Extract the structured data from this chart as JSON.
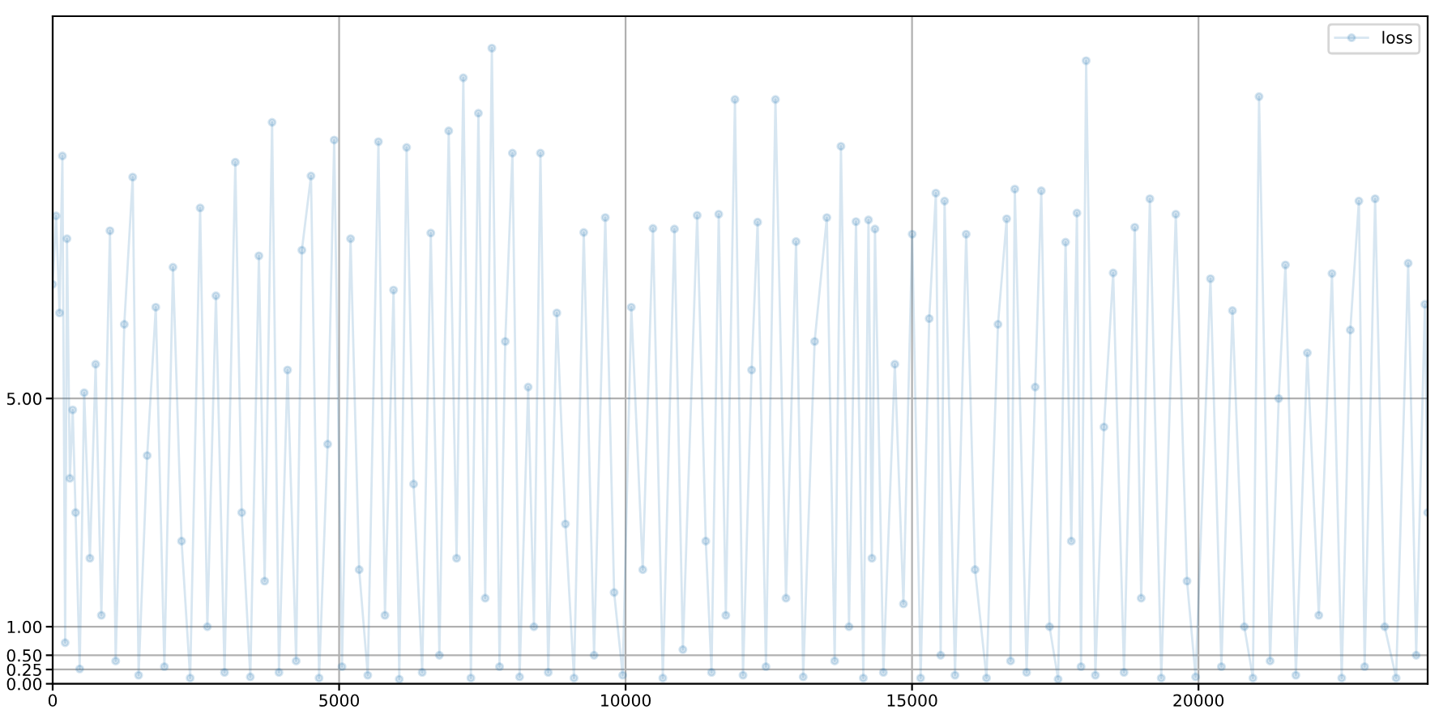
{
  "chart_data": {
    "type": "line",
    "x": [
      0,
      60,
      120,
      170,
      218,
      250,
      300,
      350,
      400,
      472,
      550,
      650,
      750,
      850,
      1000,
      1100,
      1250,
      1397,
      1500,
      1650,
      1800,
      1950,
      2100,
      2250,
      2400,
      2574,
      2700,
      2850,
      3000,
      3188,
      3300,
      3450,
      3600,
      3700,
      3830,
      3950,
      4100,
      4250,
      4350,
      4509,
      4650,
      4800,
      4914,
      5050,
      5200,
      5350,
      5500,
      5686,
      5800,
      5950,
      6050,
      6178,
      6300,
      6450,
      6600,
      6750,
      6913,
      7050,
      7168,
      7300,
      7431,
      7550,
      7666,
      7800,
      7900,
      8025,
      8150,
      8300,
      8400,
      8514,
      8650,
      8800,
      8950,
      9100,
      9270,
      9450,
      9646,
      9800,
      9950,
      10100,
      10300,
      10478,
      10650,
      10853,
      11000,
      11250,
      11400,
      11500,
      11626,
      11750,
      11909,
      12050,
      12200,
      12305,
      12450,
      12616,
      12800,
      12976,
      13100,
      13300,
      13513,
      13650,
      13759,
      13900,
      14022,
      14150,
      14240,
      14300,
      14353,
      14500,
      14700,
      14850,
      15003,
      15150,
      15300,
      15416,
      15500,
      15568,
      15750,
      15945,
      16100,
      16300,
      16500,
      16652,
      16720,
      16794,
      17000,
      17150,
      17256,
      17400,
      17550,
      17680,
      17780,
      17878,
      17950,
      18039,
      18200,
      18350,
      18511,
      18700,
      18888,
      19000,
      19151,
      19350,
      19604,
      19800,
      19950,
      20209,
      20400,
      20593,
      20800,
      20950,
      21057,
      21250,
      21400,
      21518,
      21700,
      21900,
      22100,
      22330,
      22500,
      22650,
      22800,
      22900,
      23083,
      23250,
      23450,
      23660,
      23800,
      23952,
      24000
    ],
    "series": [
      {
        "name": "loss",
        "color": "#1f77b4",
        "values": [
          7.0,
          8.2,
          6.5,
          9.25,
          0.72,
          7.8,
          3.6,
          4.8,
          3.0,
          0.26,
          5.1,
          2.2,
          5.6,
          1.2,
          7.94,
          0.4,
          6.3,
          8.88,
          0.15,
          4.0,
          6.6,
          0.3,
          7.3,
          2.5,
          0.1,
          8.34,
          1.0,
          6.8,
          0.2,
          9.14,
          3.0,
          0.12,
          7.5,
          1.8,
          9.84,
          0.2,
          5.5,
          0.4,
          7.6,
          8.9,
          0.1,
          4.2,
          9.53,
          0.3,
          7.8,
          2.0,
          0.15,
          9.5,
          1.2,
          6.9,
          0.08,
          9.4,
          3.5,
          0.2,
          7.9,
          0.5,
          9.69,
          2.2,
          10.62,
          0.1,
          10.0,
          1.5,
          11.14,
          0.3,
          6.0,
          9.3,
          0.12,
          5.2,
          1.0,
          9.3,
          0.2,
          6.5,
          2.8,
          0.1,
          7.91,
          0.5,
          8.17,
          1.6,
          0.15,
          6.6,
          2.0,
          7.98,
          0.1,
          7.97,
          0.6,
          8.21,
          2.5,
          0.2,
          8.23,
          1.2,
          10.24,
          0.15,
          5.5,
          8.09,
          0.3,
          10.24,
          1.5,
          7.75,
          0.12,
          6.0,
          8.17,
          0.4,
          9.42,
          1.0,
          8.1,
          0.1,
          8.13,
          2.2,
          7.97,
          0.2,
          5.6,
          1.4,
          7.88,
          0.1,
          6.4,
          8.6,
          0.5,
          8.46,
          0.15,
          7.88,
          2.0,
          0.1,
          6.3,
          8.15,
          0.4,
          8.67,
          0.2,
          5.2,
          8.64,
          1.0,
          0.08,
          7.74,
          2.5,
          8.25,
          0.3,
          10.92,
          0.15,
          4.5,
          7.2,
          0.2,
          8.0,
          1.5,
          8.5,
          0.1,
          8.23,
          1.8,
          0.12,
          7.1,
          0.3,
          6.54,
          1.0,
          0.1,
          10.29,
          0.4,
          5.0,
          7.34,
          0.15,
          5.8,
          1.2,
          7.19,
          0.1,
          6.2,
          8.46,
          0.3,
          8.5,
          1.0,
          0.1,
          7.37,
          0.5,
          6.65,
          3.0
        ]
      }
    ],
    "xlim": [
      0,
      24000
    ],
    "ylim": [
      0,
      11.7
    ],
    "xticks": [
      0,
      5000,
      10000,
      15000,
      20000
    ],
    "yticks": [
      {
        "value": 0,
        "label": "0.00"
      },
      {
        "value": 0.25,
        "label": "0.25"
      },
      {
        "value": 0.5,
        "label": "0.50"
      },
      {
        "value": 1,
        "label": "1.00"
      },
      {
        "value": 5,
        "label": "5.00"
      }
    ],
    "grid": true,
    "legend": "top right",
    "marker": "circle",
    "line_style": "solid"
  }
}
